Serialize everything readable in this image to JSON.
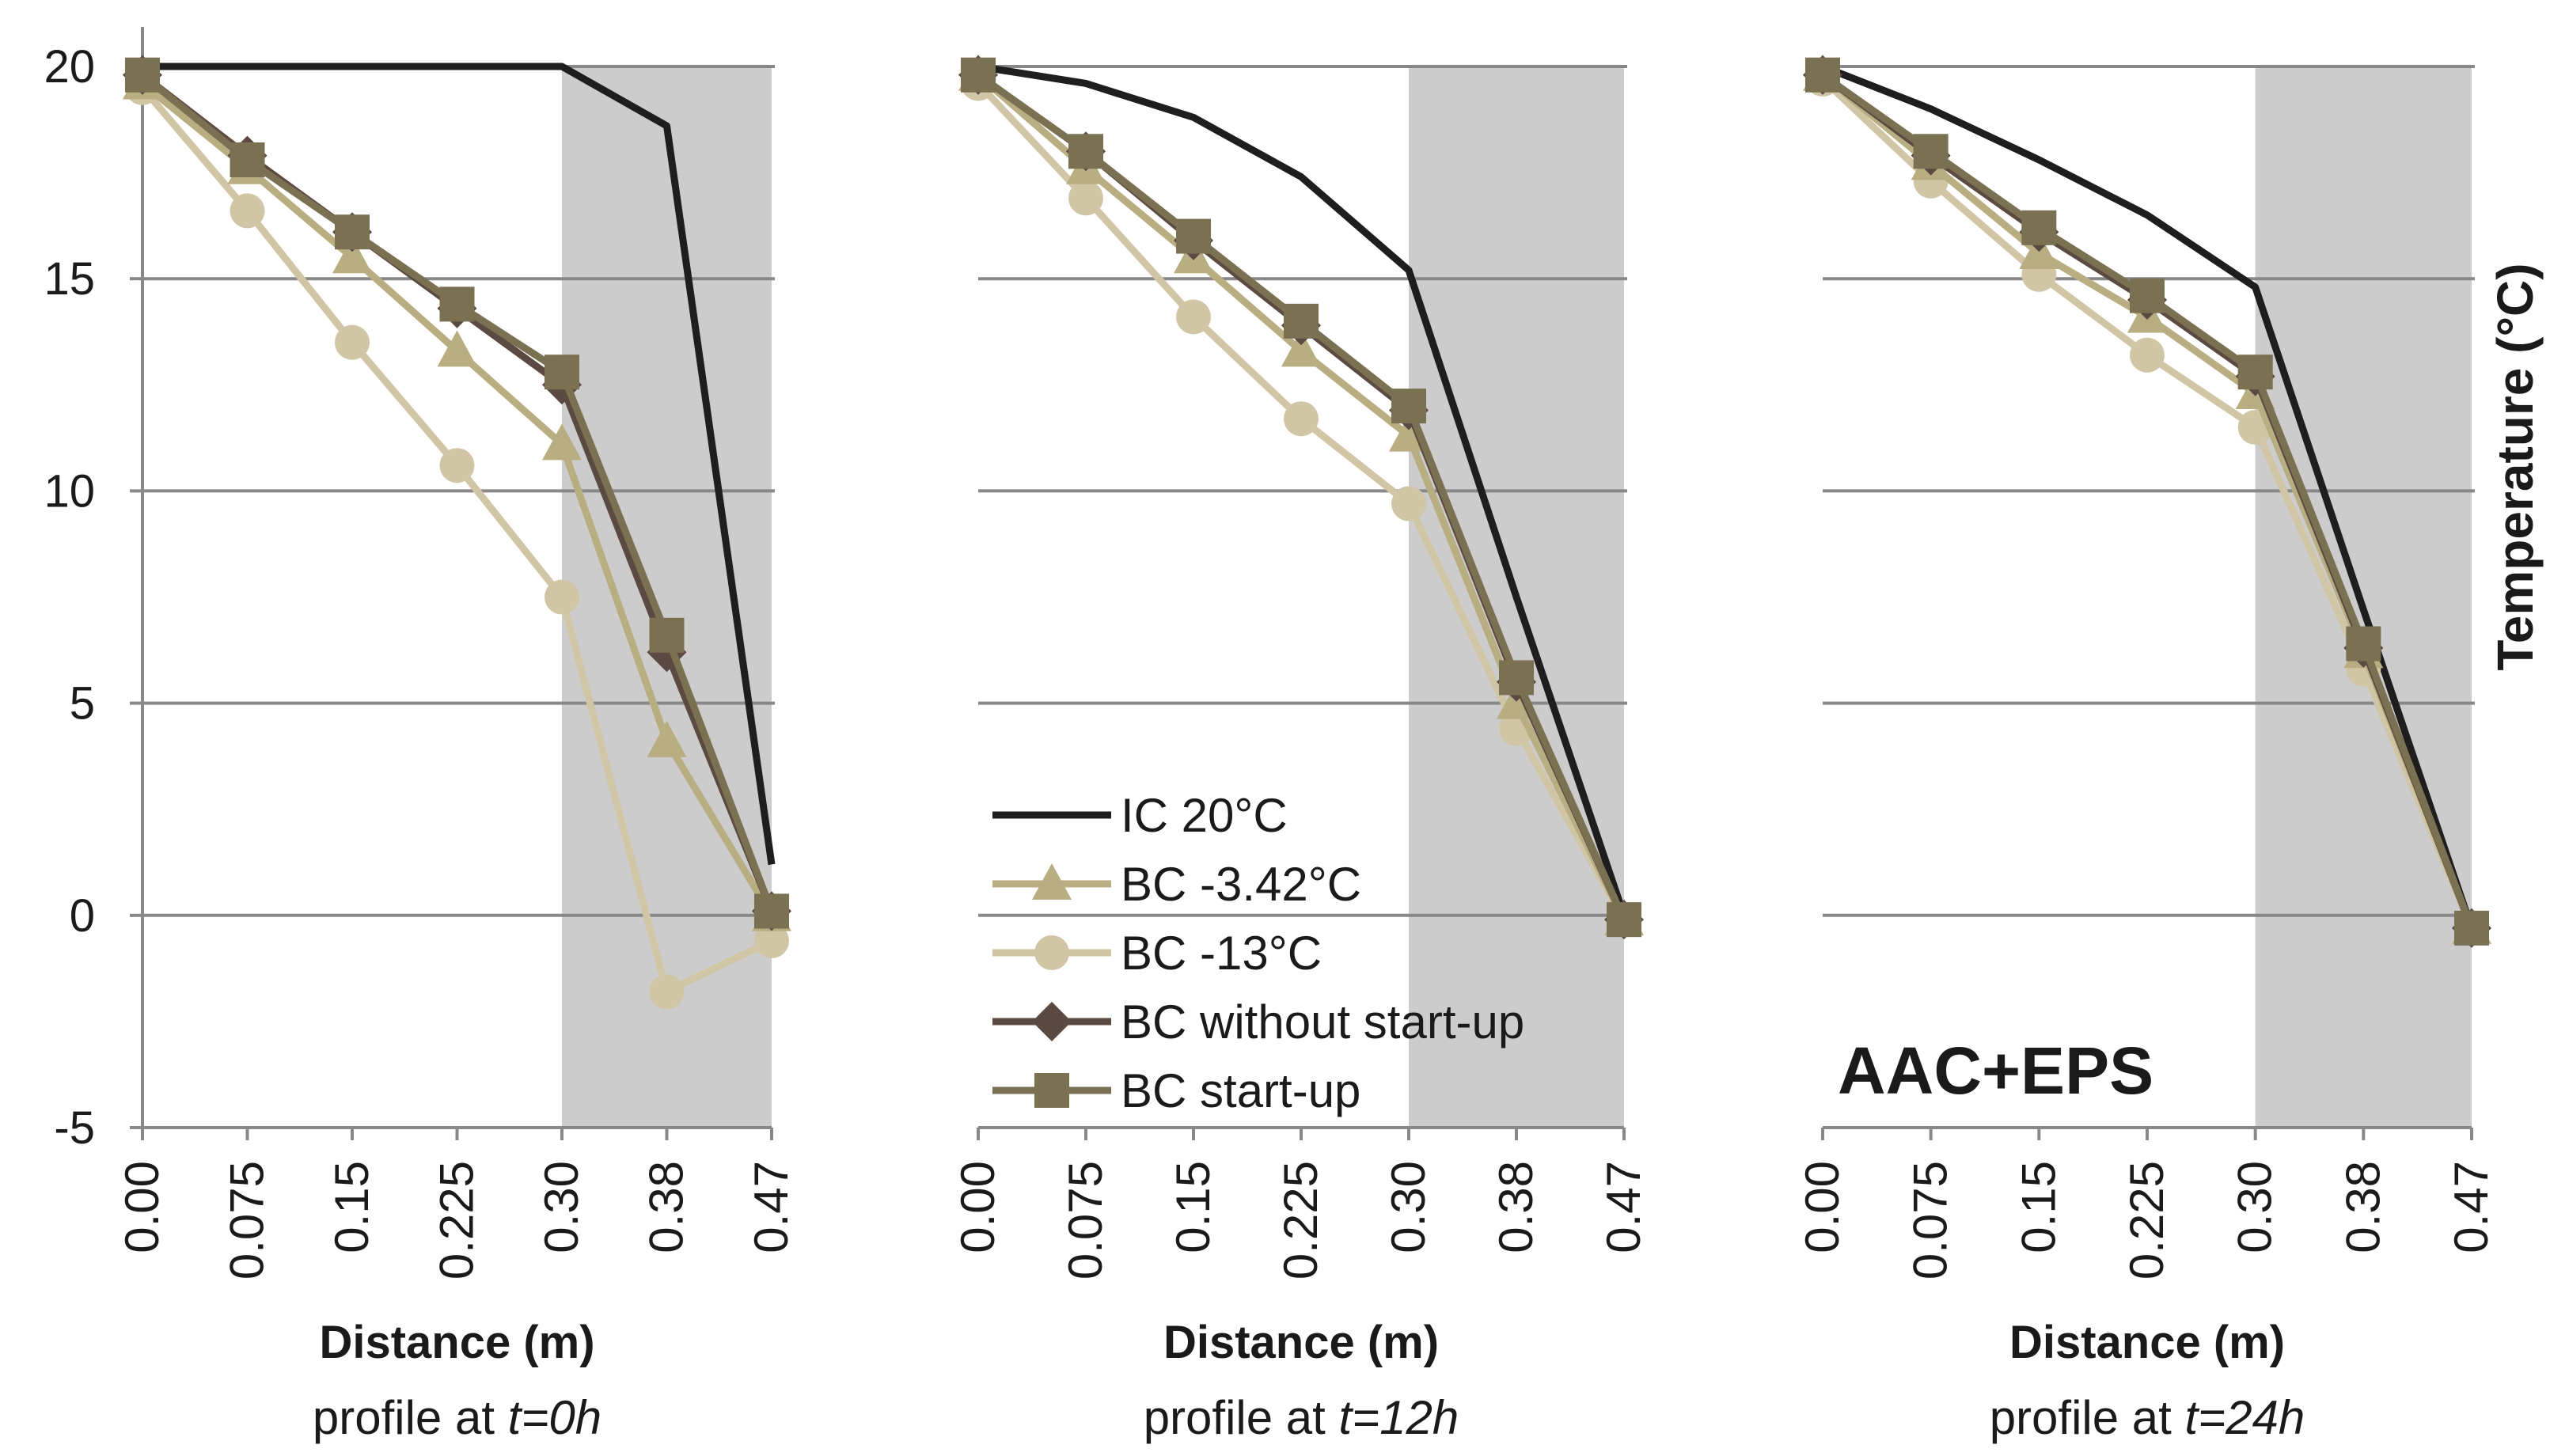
{
  "colors": {
    "shade": "#cccccc",
    "grid": "#888888",
    "axis": "#888888",
    "text": "#1a1a1a",
    "ic": "#1e1e1e",
    "bc342": "#b9ad82",
    "bc13": "#d0c6a6",
    "bcnostart": "#5a4a42",
    "bcstart": "#7a7052"
  },
  "ylabel": "Temperature (°C)",
  "y_ticks": [
    "20",
    "15",
    "10",
    "5",
    "0",
    "-5"
  ],
  "legend": {
    "entries": [
      {
        "series": "ic",
        "label": "IC 20°C"
      },
      {
        "series": "bc342",
        "label": "BC -3.42°C"
      },
      {
        "series": "bc13",
        "label": "BC -13°C"
      },
      {
        "series": "bcnostart",
        "label": "BC without start-up"
      },
      {
        "series": "bcstart",
        "label": "BC start-up"
      }
    ]
  },
  "annotation": "AAC+EPS",
  "chart_data": [
    {
      "type": "line",
      "xlabel": "Distance (m)",
      "caption_prefix": "profile at ",
      "caption_time": "t=0h",
      "categories": [
        "0.00",
        "0.075",
        "0.15",
        "0.225",
        "0.30",
        "0.38",
        "0.47"
      ],
      "ylim": [
        -5,
        20
      ],
      "shaded_region": [
        "0.30",
        "0.47"
      ],
      "series": [
        {
          "key": "ic",
          "name": "IC 20°C",
          "values": [
            20,
            20,
            20,
            20,
            20,
            18.6,
            1.2
          ]
        },
        {
          "key": "bc342",
          "name": "BC -3.42°C",
          "values": [
            19.6,
            17.6,
            15.5,
            13.3,
            11.1,
            4.1,
            0.0
          ]
        },
        {
          "key": "bc13",
          "name": "BC -13°C",
          "values": [
            19.5,
            16.6,
            13.5,
            10.6,
            7.5,
            -1.8,
            -0.6
          ]
        },
        {
          "key": "bcnostart",
          "name": "BC without start-up",
          "values": [
            19.8,
            17.9,
            16.1,
            14.3,
            12.5,
            6.2,
            0.1
          ]
        },
        {
          "key": "bcstart",
          "name": "BC start-up",
          "values": [
            19.8,
            17.8,
            16.1,
            14.4,
            12.8,
            6.6,
            0.1
          ]
        }
      ]
    },
    {
      "type": "line",
      "xlabel": "Distance (m)",
      "caption_prefix": "profile at ",
      "caption_time": "t=12h",
      "categories": [
        "0.00",
        "0.075",
        "0.15",
        "0.225",
        "0.30",
        "0.38",
        "0.47"
      ],
      "ylim": [
        -5,
        20
      ],
      "shaded_region": [
        "0.30",
        "0.47"
      ],
      "series": [
        {
          "key": "ic",
          "name": "IC 20°C",
          "values": [
            20,
            19.6,
            18.8,
            17.4,
            15.2,
            7.5,
            0.0
          ]
        },
        {
          "key": "bc342",
          "name": "BC -3.42°C",
          "values": [
            19.8,
            17.6,
            15.5,
            13.3,
            11.3,
            5.0,
            -0.1
          ]
        },
        {
          "key": "bc13",
          "name": "BC -13°C",
          "values": [
            19.6,
            16.9,
            14.1,
            11.7,
            9.7,
            4.4,
            -0.1
          ]
        },
        {
          "key": "bcnostart",
          "name": "BC without start-up",
          "values": [
            19.8,
            18.0,
            15.9,
            13.9,
            11.9,
            5.5,
            -0.1
          ]
        },
        {
          "key": "bcstart",
          "name": "BC start-up",
          "values": [
            19.8,
            18.0,
            16.0,
            14.0,
            12.0,
            5.6,
            -0.1
          ]
        }
      ]
    },
    {
      "type": "line",
      "xlabel": "Distance (m)",
      "caption_prefix": "profile at ",
      "caption_time": "t=24h",
      "categories": [
        "0.00",
        "0.075",
        "0.15",
        "0.225",
        "0.30",
        "0.38",
        "0.47"
      ],
      "ylim": [
        -5,
        20
      ],
      "shaded_region": [
        "0.30",
        "0.47"
      ],
      "series": [
        {
          "key": "ic",
          "name": "IC 20°C",
          "values": [
            20,
            19.0,
            17.8,
            16.5,
            14.8,
            7.2,
            -0.3
          ]
        },
        {
          "key": "bc342",
          "name": "BC -3.42°C",
          "values": [
            19.8,
            17.7,
            15.6,
            14.1,
            12.3,
            6.2,
            -0.3
          ]
        },
        {
          "key": "bc13",
          "name": "BC -13°C",
          "values": [
            19.7,
            17.3,
            15.1,
            13.2,
            11.5,
            5.8,
            -0.3
          ]
        },
        {
          "key": "bcnostart",
          "name": "BC without start-up",
          "values": [
            19.8,
            17.9,
            16.1,
            14.5,
            12.7,
            6.3,
            -0.3
          ]
        },
        {
          "key": "bcstart",
          "name": "BC start-up",
          "values": [
            19.8,
            18.0,
            16.2,
            14.6,
            12.8,
            6.4,
            -0.3
          ]
        }
      ]
    }
  ]
}
